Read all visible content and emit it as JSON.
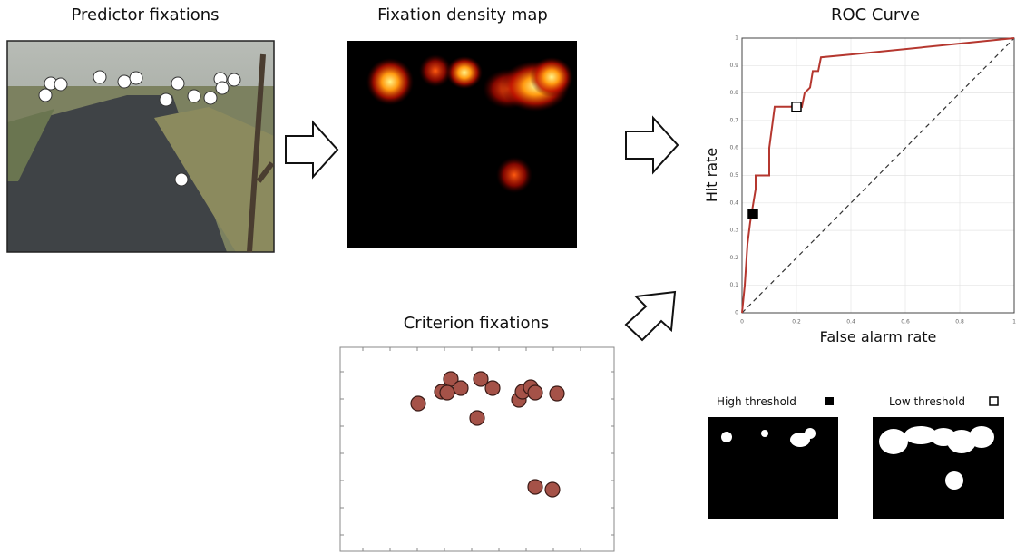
{
  "panels": {
    "predictor": {
      "title": "Predictor fixations"
    },
    "density": {
      "title": "Fixation density map"
    },
    "criterion": {
      "title": "Criterion fixations"
    },
    "high_threshold": {
      "label": "High threshold"
    },
    "low_threshold": {
      "label": "Low threshold"
    }
  },
  "chart_data": {
    "type": "line",
    "title": "ROC Curve",
    "xlabel": "False alarm rate",
    "ylabel": "Hit rate",
    "x": [
      0,
      0.01,
      0.02,
      0.03,
      0.05,
      0.05,
      0.1,
      0.1,
      0.12,
      0.18,
      0.2,
      0.22,
      0.23,
      0.25,
      0.26,
      0.28,
      0.29,
      0.4,
      1
    ],
    "values": [
      0,
      0.1,
      0.25,
      0.33,
      0.45,
      0.5,
      0.5,
      0.6,
      0.75,
      0.75,
      0.76,
      0.75,
      0.8,
      0.82,
      0.88,
      0.88,
      0.93,
      0.94,
      1
    ],
    "color": "#b5372f",
    "markers": [
      {
        "x": 0.04,
        "y": 0.36,
        "fill": "#000000"
      },
      {
        "x": 0.2,
        "y": 0.75,
        "fill": "#ffffff"
      }
    ],
    "xlim": [
      0,
      1
    ],
    "ylim": [
      0,
      1
    ],
    "xticks": [
      0,
      0.2,
      0.4,
      0.6,
      0.8,
      1
    ],
    "yticks": [
      0,
      0.1,
      0.2,
      0.3,
      0.4,
      0.5,
      0.6,
      0.7,
      0.8,
      0.9,
      1
    ],
    "grid": true
  }
}
